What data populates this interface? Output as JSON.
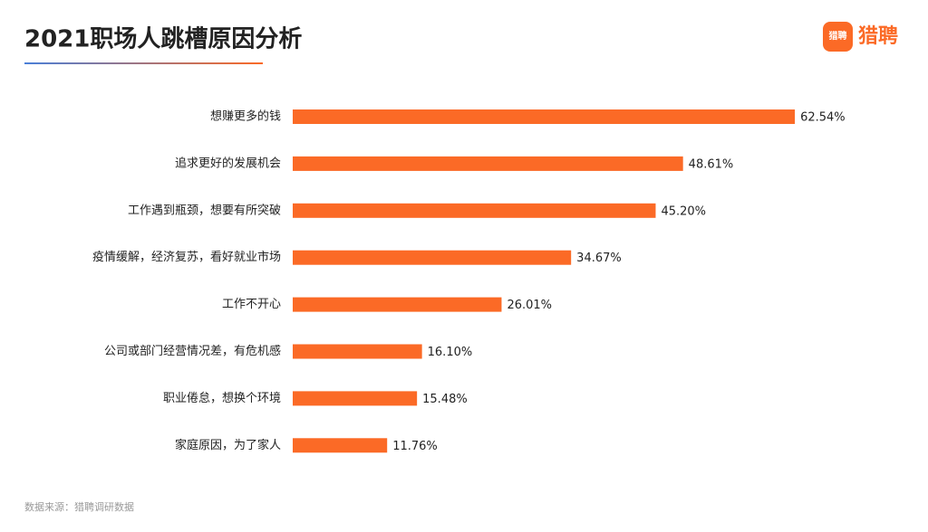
{
  "chart_data": {
    "type": "bar",
    "orientation": "horizontal",
    "title": "2021职场人跳槽原因分析",
    "categories": [
      "想赚更多的钱",
      "追求更好的发展机会",
      "工作遇到瓶颈，想要有所突破",
      "疫情缓解，经济复苏，看好就业市场",
      "工作不开心",
      "公司或部门经营情况差，有危机感",
      "职业倦怠，想换个环境",
      "家庭原因，为了家人"
    ],
    "values": [
      62.54,
      48.61,
      45.2,
      34.67,
      26.01,
      16.1,
      15.48,
      11.76
    ],
    "value_labels": [
      "62.54%",
      "48.61%",
      "45.20%",
      "34.67%",
      "26.01%",
      "16.10%",
      "15.48%",
      "11.76%"
    ],
    "color": "#fb6a26",
    "source": "数据来源：猎聘调研数据"
  },
  "logo": {
    "icon_text": "猎聘",
    "text": "猎聘"
  }
}
